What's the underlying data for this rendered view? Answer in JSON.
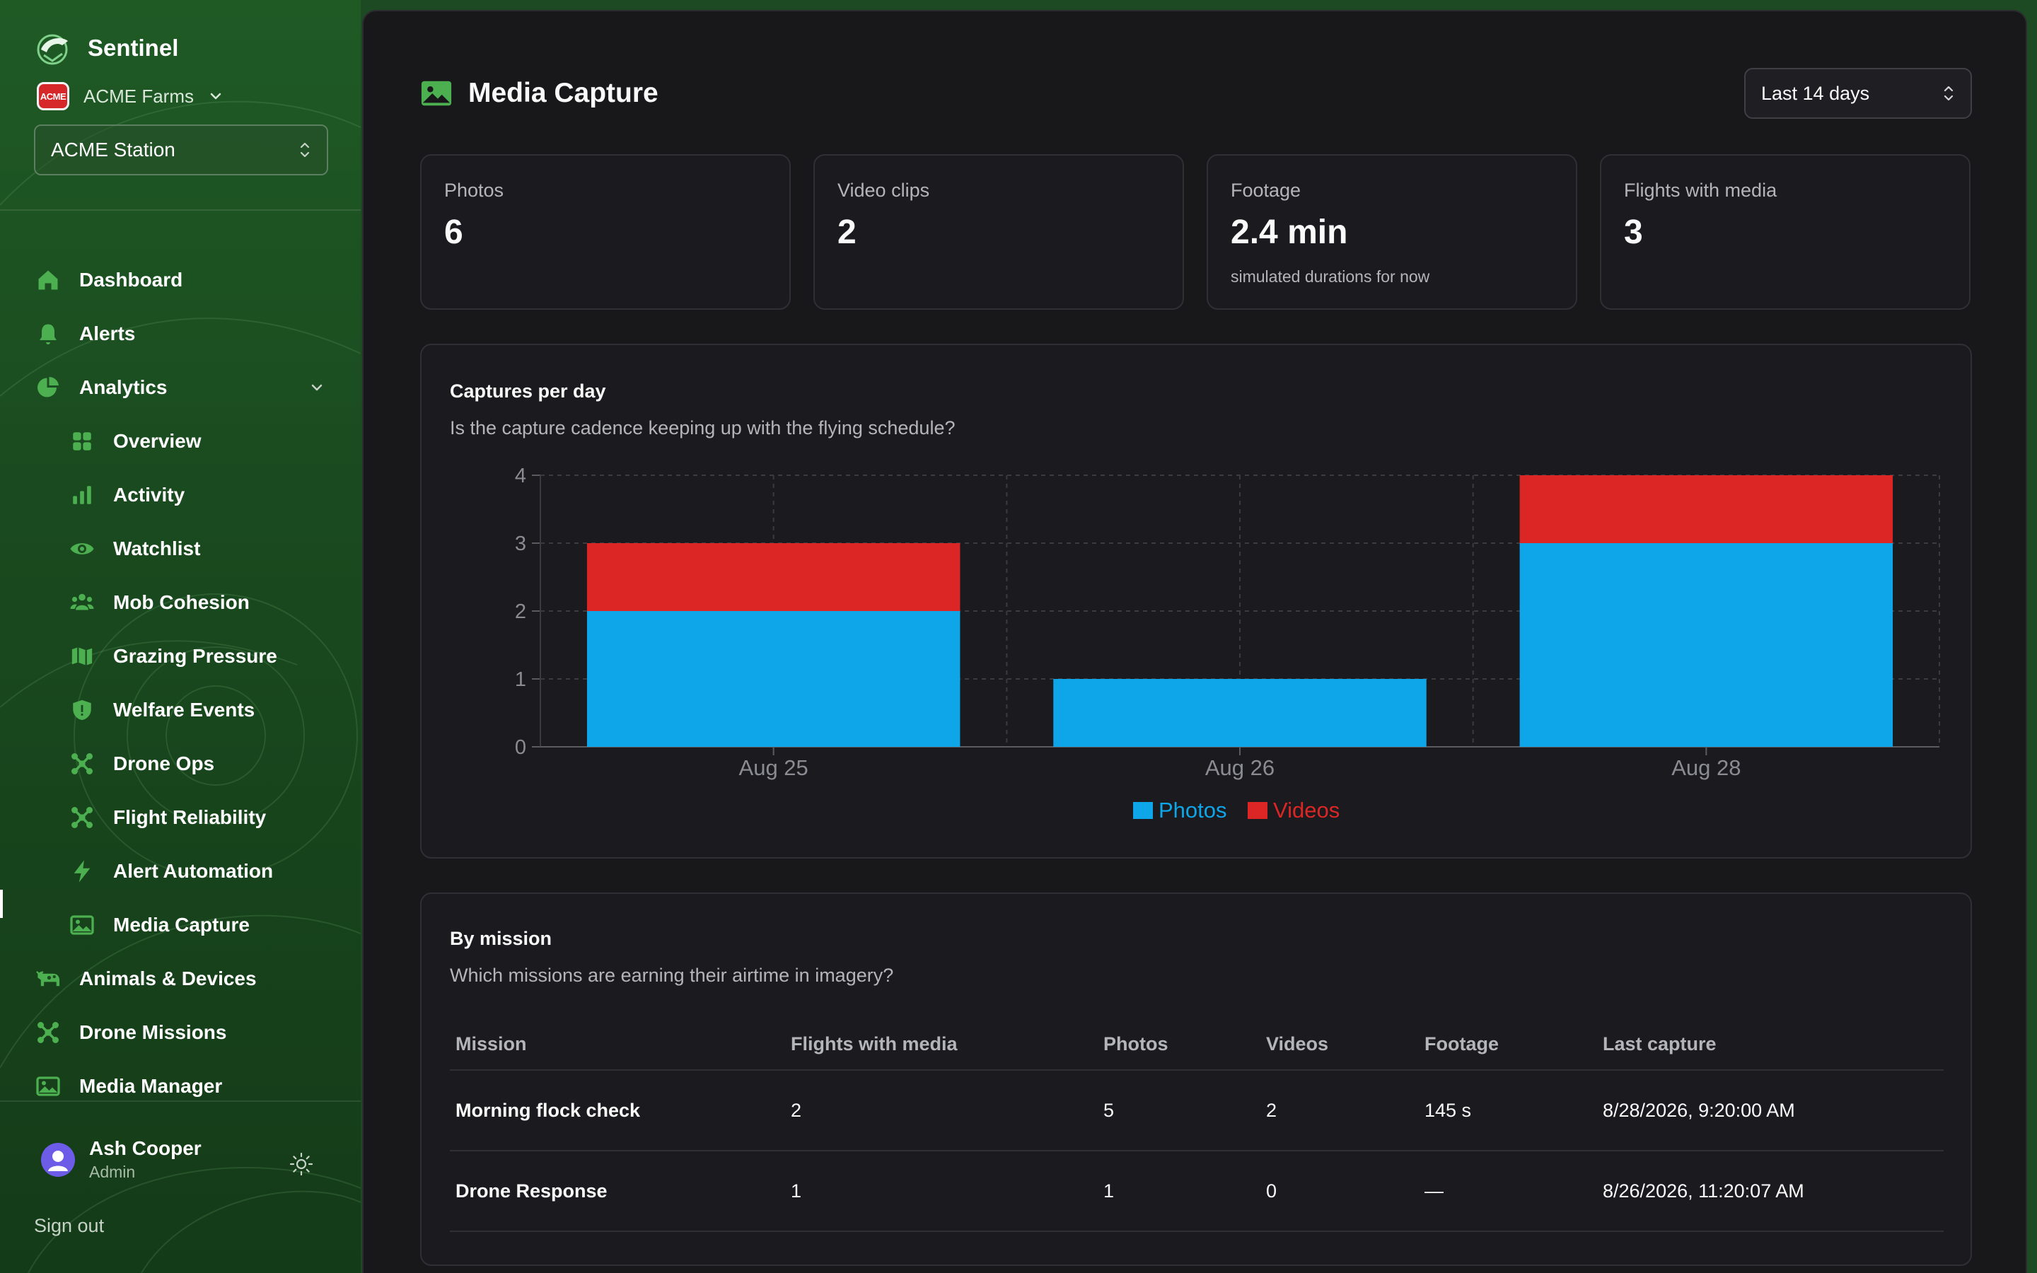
{
  "app": {
    "name": "Sentinel",
    "org": {
      "name": "ACME Farms",
      "logo_text": "ACME"
    },
    "station": "ACME Station"
  },
  "sidebar": {
    "items": [
      {
        "label": "Dashboard",
        "icon": "home-icon"
      },
      {
        "label": "Alerts",
        "icon": "bell-icon"
      },
      {
        "label": "Analytics",
        "icon": "pie-chart-icon",
        "expanded": true
      },
      {
        "label": "Overview",
        "icon": "grid-icon",
        "sub": true
      },
      {
        "label": "Activity",
        "icon": "bar-chart-icon",
        "sub": true
      },
      {
        "label": "Watchlist",
        "icon": "eye-icon",
        "sub": true
      },
      {
        "label": "Mob Cohesion",
        "icon": "users-icon",
        "sub": true
      },
      {
        "label": "Grazing Pressure",
        "icon": "map-icon",
        "sub": true
      },
      {
        "label": "Welfare Events",
        "icon": "shield-icon",
        "sub": true
      },
      {
        "label": "Drone Ops",
        "icon": "drone-icon",
        "sub": true
      },
      {
        "label": "Flight Reliability",
        "icon": "drone-icon",
        "sub": true
      },
      {
        "label": "Alert Automation",
        "icon": "bolt-icon",
        "sub": true
      },
      {
        "label": "Media Capture",
        "icon": "image-icon",
        "sub": true,
        "active": true
      },
      {
        "label": "Animals & Devices",
        "icon": "cow-icon"
      },
      {
        "label": "Drone Missions",
        "icon": "drone-icon"
      },
      {
        "label": "Media Manager",
        "icon": "image-icon"
      }
    ],
    "user": {
      "name": "Ash Cooper",
      "role": "Admin"
    },
    "signout": "Sign out"
  },
  "page": {
    "title": "Media Capture",
    "range": "Last 14 days"
  },
  "stats": [
    {
      "label": "Photos",
      "value": "6",
      "note": ""
    },
    {
      "label": "Video clips",
      "value": "2",
      "note": ""
    },
    {
      "label": "Footage",
      "value": "2.4 min",
      "note": "simulated durations for now"
    },
    {
      "label": "Flights with media",
      "value": "3",
      "note": ""
    }
  ],
  "captures_panel": {
    "title": "Captures per day",
    "subtitle": "Is the capture cadence keeping up with the flying schedule?"
  },
  "chart_data": {
    "type": "bar",
    "stacked": true,
    "categories": [
      "Aug 25",
      "Aug 26",
      "Aug 28"
    ],
    "series": [
      {
        "name": "Photos",
        "values": [
          2,
          1,
          3
        ],
        "color": "#0ea5e9"
      },
      {
        "name": "Videos",
        "values": [
          1,
          0,
          1
        ],
        "color": "#dc2626"
      }
    ],
    "yticks": [
      0,
      1,
      2,
      3,
      4
    ],
    "ylim": [
      0,
      4
    ],
    "grid": true,
    "legend": "bottom-center"
  },
  "mission_panel": {
    "title": "By mission",
    "subtitle": "Which missions are earning their airtime in imagery?",
    "columns": [
      "Mission",
      "Flights with media",
      "Photos",
      "Videos",
      "Footage",
      "Last capture"
    ],
    "rows": [
      [
        "Morning flock check",
        "2",
        "5",
        "2",
        "145 s",
        "8/28/2026, 9:20:00 AM"
      ],
      [
        "Drone Response",
        "1",
        "1",
        "0",
        "—",
        "8/26/2026, 11:20:07 AM"
      ]
    ]
  }
}
